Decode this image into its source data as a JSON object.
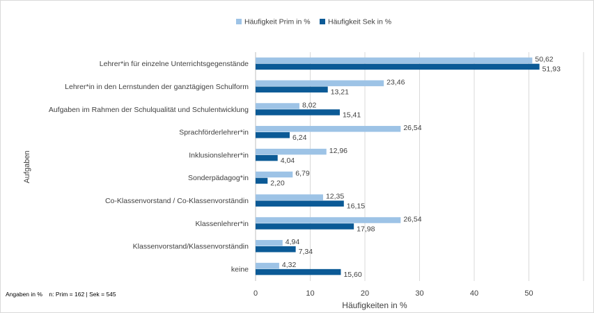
{
  "chart_data": {
    "type": "bar",
    "orientation": "horizontal",
    "categories": [
      "Lehrer*in für einzelne Unterrichtsgegenstände",
      "Lehrer*in in den Lernstunden der ganztägigen Schulform",
      "Aufgaben im Rahmen der Schulqualität und Schulentwicklung",
      "Sprachförderlehrer*in",
      "Inklusionslehrer*in",
      "Sonderpädagog*in",
      "Co-Klassenvorstand / Co-Klassenvorständin",
      "Klassenlehrer*in",
      "Klassenvorstand/Klassenvorständin",
      "keine"
    ],
    "series": [
      {
        "name": "Häufigkeit Prim in %",
        "color": "#9dc3e6",
        "values": [
          50.62,
          23.46,
          8.02,
          26.54,
          12.96,
          6.79,
          12.35,
          26.54,
          4.94,
          4.32
        ],
        "labels": [
          "50,62",
          "23,46",
          "8,02",
          "26,54",
          "12,96",
          "6,79",
          "12,35",
          "26,54",
          "4,94",
          "4,32"
        ]
      },
      {
        "name": "Häufigkeit Sek in %",
        "color": "#0b5a96",
        "values": [
          51.93,
          13.21,
          15.41,
          6.24,
          4.04,
          2.2,
          16.15,
          17.98,
          7.34,
          15.6
        ],
        "labels": [
          "51,93",
          "13,21",
          "15,41",
          "6,24",
          "4,04",
          "2,20",
          "16,15",
          "17,98",
          "7,34",
          "15,60"
        ]
      }
    ],
    "xlabel": "Häufigkeiten in %",
    "ylabel": "Aufgaben",
    "xlim": [
      0,
      60
    ],
    "xticks": [
      0,
      10,
      20,
      30,
      40,
      50
    ],
    "xtick_labels": [
      "0",
      "10",
      "20",
      "30",
      "40",
      "50"
    ],
    "grid": true,
    "legend": "top-center"
  },
  "footnote": {
    "unit_text": "Angaben in %",
    "sample_text": "n: Prim = 162 | Sek = 545"
  }
}
